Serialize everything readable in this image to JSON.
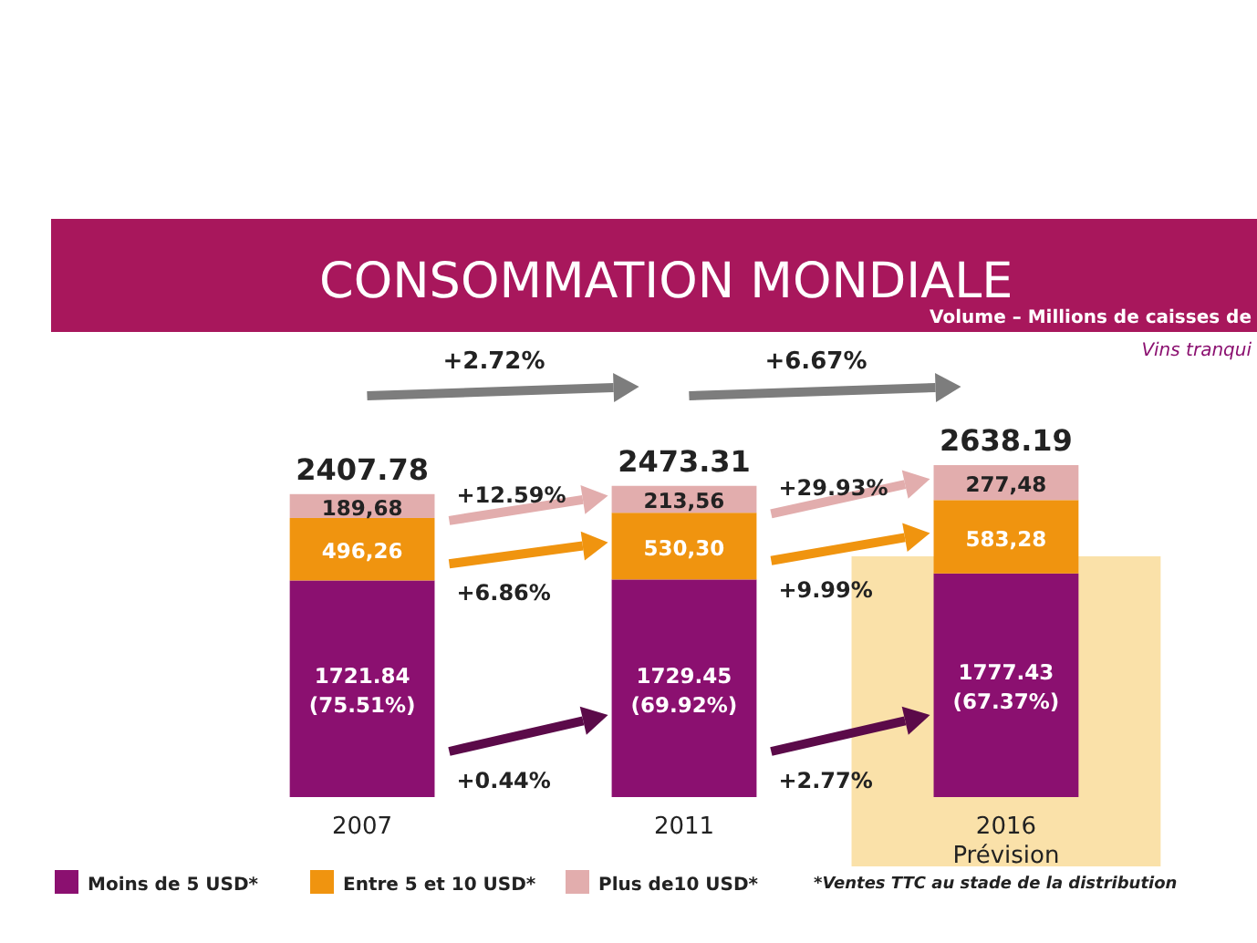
{
  "chart_data": {
    "type": "bar",
    "stacked": true,
    "title": "CONSOMMATION MONDIALE",
    "subtitle": "Volume – Millions de caisses de",
    "categories": [
      "2007",
      "2011",
      "2016 Prévision"
    ],
    "series": [
      {
        "name": "Moins de 5 USD*",
        "color": "#8b1070",
        "values": [
          1721.84,
          1729.45,
          1777.43
        ],
        "value_labels": [
          "1721.84 (75.51%)",
          "1729.45 (69.92%)",
          "1777.43 (67.37%)"
        ]
      },
      {
        "name": "Entre 5 et 10 USD*",
        "color": "#f0940f",
        "values": [
          496.26,
          530.3,
          583.28
        ],
        "value_labels": [
          "496,26",
          "530,30",
          "583,28"
        ]
      },
      {
        "name": "Plus de10 USD*",
        "color": "#e2adad",
        "values": [
          189.68,
          213.56,
          277.48
        ],
        "value_labels": [
          "189,68",
          "213,56",
          "277,48"
        ]
      }
    ],
    "totals": [
      "2407.78",
      "2473.31",
      "2638.19"
    ],
    "bands": [
      {
        "axis": "x",
        "from": "2016 Prévision",
        "to": "2016 Prévision",
        "color": "#f9dc9a"
      }
    ],
    "annotations": [
      "+2.72%",
      "+6.67%",
      "+0.44%",
      "+6.86%",
      "+12.59%",
      "+2.77%",
      "+9.99%",
      "+29.93%",
      "*Ventes TTC au stade de la distribution",
      "Vins tranqui"
    ],
    "legend": "bottom"
  }
}
